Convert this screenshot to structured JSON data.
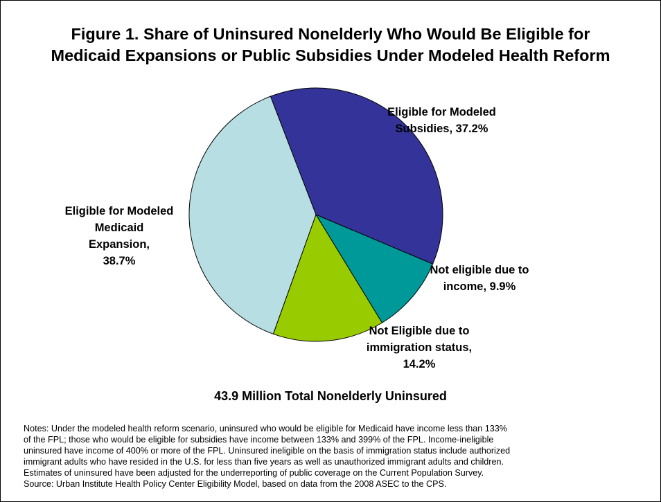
{
  "title_lines": [
    "Figure 1. Share of Uninsured Nonelderly Who Would Be Eligible for",
    "Medicaid Expansions or Public Subsidies Under Modeled Health Reform"
  ],
  "total_label": "43.9 Million Total Nonelderly Uninsured",
  "chart_data": {
    "type": "pie",
    "title": "Figure 1. Share of Uninsured Nonelderly Who Would Be Eligible for Medicaid Expansions or Public Subsidies Under Modeled Health Reform",
    "unit": "%",
    "start_angle_deg": -21,
    "direction": "clockwise",
    "legend": "none",
    "slices": [
      {
        "label": "Eligible for Modeled Subsidies",
        "value": 37.2,
        "color": "#333399",
        "label_lines": [
          "Eligible for Modeled",
          "Subsidies, 37.2%"
        ]
      },
      {
        "label": "Not eligible due to income",
        "value": 9.9,
        "color": "#009999",
        "label_lines": [
          "Not eligible due to",
          "income, 9.9%"
        ]
      },
      {
        "label": "Not Eligible due to immigration status",
        "value": 14.2,
        "color": "#99CC00",
        "label_lines": [
          "Not Eligible due to",
          "immigration status,",
          "14.2%"
        ]
      },
      {
        "label": "Eligible for Modeled Medicaid Expansion",
        "value": 38.7,
        "color": "#B7DEE2",
        "label_lines": [
          "Eligible for Modeled",
          "Medicaid",
          "Expansion,",
          "38.7%"
        ]
      }
    ]
  },
  "notes_lines": [
    "Notes: Under the modeled health reform scenario, uninsured who would be eligible for Medicaid have income less than 133%",
    "of the FPL; those  who would be eligible for subsidies have income between 133% and 399% of the FPL. Income-ineligible",
    "uninsured have income of 400% or more of the FPL. Uninsured ineligible on the basis of immigration status include authorized",
    "immigrant adults who have resided in the U.S. for less than five years as well as unauthorized immigrant adults and children.",
    "Estimates of uninsured have been adjusted for the underreporting of public coverage on the Current Population Survey.",
    "Source: Urban Institute Health Policy Center Eligibility Model, based on data from the 2008 ASEC to the CPS."
  ]
}
